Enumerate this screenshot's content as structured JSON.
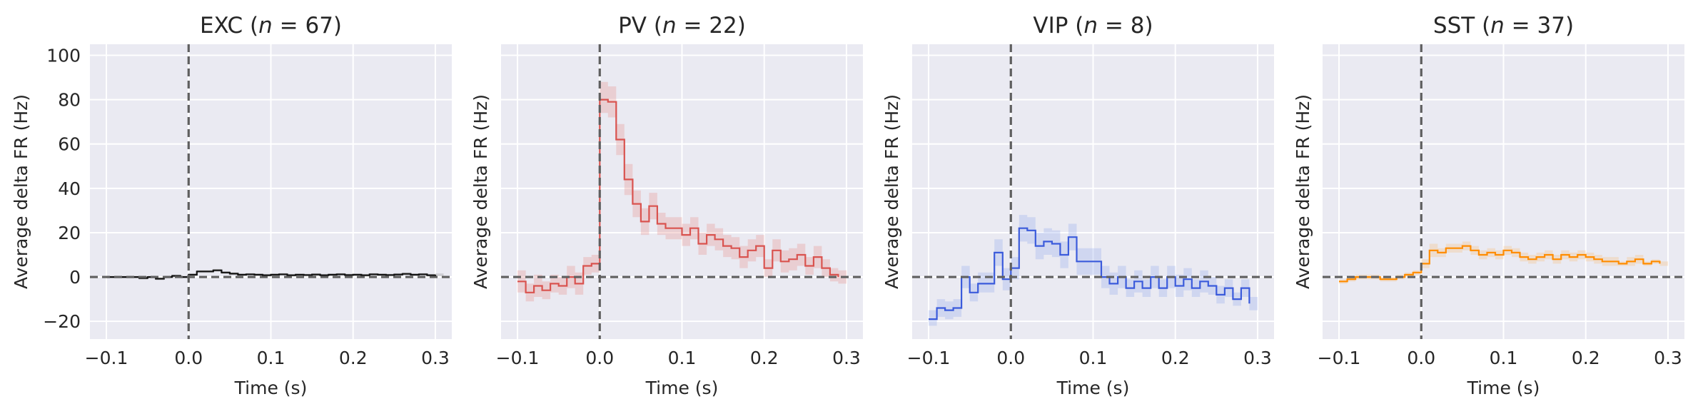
{
  "figure": {
    "background": "#ffffff",
    "axes_facecolor": "#eaeaf2",
    "grid_color": "#ffffff"
  },
  "chart_data": [
    {
      "type": "line",
      "style": "step",
      "title": "EXC (n = 67)",
      "title_prefix": "EXC (",
      "title_n": "67",
      "xlabel": "Time (s)",
      "ylabel": "Average delta FR (Hz)",
      "xlim": [
        -0.12,
        0.32
      ],
      "ylim": [
        -28,
        105
      ],
      "xticks": [
        -0.1,
        0.0,
        0.1,
        0.2,
        0.3
      ],
      "xtick_labels": [
        "−0.1",
        "0.0",
        "0.1",
        "0.2",
        "0.3"
      ],
      "yticks": [
        -20,
        0,
        20,
        40,
        60,
        80,
        100
      ],
      "ytick_labels": [
        "−20",
        "0",
        "20",
        "40",
        "60",
        "80",
        "100"
      ],
      "show_yticklabels": true,
      "grid": true,
      "color": "#111111",
      "band_color": "#999999",
      "reference_lines": {
        "x": 0,
        "y": 0,
        "color": "#5f5f5f",
        "style": "dashed"
      },
      "series": [
        {
          "x": [
            -0.1,
            -0.09,
            -0.08,
            -0.07,
            -0.06,
            -0.05,
            -0.04,
            -0.03,
            -0.02,
            -0.01,
            0.0,
            0.01,
            0.02,
            0.03,
            0.04,
            0.05,
            0.06,
            0.07,
            0.08,
            0.09,
            0.1,
            0.11,
            0.12,
            0.13,
            0.14,
            0.15,
            0.16,
            0.17,
            0.18,
            0.19,
            0.2,
            0.21,
            0.22,
            0.23,
            0.24,
            0.25,
            0.26,
            0.27,
            0.28,
            0.29,
            0.3
          ],
          "y": [
            0.0,
            0.0,
            0.0,
            0.0,
            -0.5,
            0.0,
            -0.8,
            0.0,
            0.5,
            0.0,
            1.0,
            2.5,
            2.5,
            3.0,
            2.0,
            1.5,
            1.0,
            1.2,
            1.0,
            0.8,
            1.0,
            1.2,
            0.8,
            1.0,
            0.9,
            1.1,
            0.8,
            1.0,
            1.2,
            0.9,
            1.0,
            0.8,
            1.2,
            1.0,
            0.9,
            1.1,
            1.4,
            1.0,
            1.2,
            0.8,
            1.0
          ],
          "ci_low": [
            -0.6,
            -0.6,
            -0.6,
            -0.6,
            -1.1,
            -0.6,
            -1.4,
            -0.6,
            -0.1,
            -0.6,
            0.4,
            1.9,
            1.9,
            2.4,
            1.4,
            0.9,
            0.4,
            0.6,
            0.4,
            0.2,
            0.4,
            0.6,
            0.2,
            0.4,
            0.3,
            0.5,
            0.2,
            0.4,
            0.6,
            0.3,
            0.4,
            0.2,
            0.6,
            0.4,
            0.3,
            0.5,
            0.8,
            0.4,
            0.6,
            0.2,
            0.4
          ],
          "ci_high": [
            0.6,
            0.6,
            0.6,
            0.6,
            0.1,
            0.6,
            -0.2,
            0.6,
            1.1,
            0.6,
            1.6,
            3.1,
            3.1,
            3.6,
            2.6,
            2.1,
            1.6,
            1.8,
            1.6,
            1.4,
            1.6,
            1.8,
            1.4,
            1.6,
            1.5,
            1.7,
            1.4,
            1.6,
            1.8,
            1.5,
            1.6,
            1.4,
            1.8,
            1.6,
            1.5,
            1.7,
            2.0,
            1.6,
            1.8,
            1.4,
            1.6
          ]
        }
      ]
    },
    {
      "type": "line",
      "style": "step",
      "title": "PV (n = 22)",
      "title_prefix": "PV (",
      "title_n": "22",
      "xlabel": "Time (s)",
      "ylabel": "Average delta FR (Hz)",
      "xlim": [
        -0.12,
        0.32
      ],
      "ylim": [
        -28,
        105
      ],
      "xticks": [
        -0.1,
        0.0,
        0.1,
        0.2,
        0.3
      ],
      "xtick_labels": [
        "−0.1",
        "0.0",
        "0.1",
        "0.2",
        "0.3"
      ],
      "yticks": [
        -20,
        0,
        20,
        40,
        60,
        80,
        100
      ],
      "ytick_labels": [
        "−20",
        "0",
        "20",
        "40",
        "60",
        "80",
        "100"
      ],
      "show_yticklabels": false,
      "grid": true,
      "color": "#d9534f",
      "band_color": "#e89a98",
      "reference_lines": {
        "x": 0,
        "y": 0,
        "color": "#5f5f5f",
        "style": "dashed"
      },
      "series": [
        {
          "x": [
            -0.1,
            -0.09,
            -0.08,
            -0.07,
            -0.06,
            -0.05,
            -0.04,
            -0.03,
            -0.02,
            -0.01,
            0.0,
            0.01,
            0.02,
            0.03,
            0.04,
            0.05,
            0.06,
            0.07,
            0.08,
            0.09,
            0.1,
            0.11,
            0.12,
            0.13,
            0.14,
            0.15,
            0.16,
            0.17,
            0.18,
            0.19,
            0.2,
            0.21,
            0.22,
            0.23,
            0.24,
            0.25,
            0.26,
            0.27,
            0.28,
            0.29
          ],
          "y": [
            -2,
            -7,
            -4,
            -6,
            -3,
            -4,
            0,
            -3,
            5,
            6,
            80,
            79,
            62,
            44,
            33,
            25,
            32,
            24,
            22,
            22,
            19,
            22,
            15,
            19,
            17,
            14,
            13,
            9,
            12,
            14,
            4,
            12,
            7,
            8,
            10,
            5,
            9,
            4,
            1,
            0
          ],
          "ci_low": [
            -7,
            -11,
            -9,
            -10,
            -7,
            -8,
            -5,
            -8,
            1,
            2,
            74,
            72,
            55,
            37,
            27,
            19,
            26,
            19,
            17,
            17,
            14,
            17,
            10,
            14,
            12,
            9,
            8,
            4,
            7,
            9,
            0,
            7,
            2,
            3,
            5,
            1,
            4,
            0,
            -2,
            -3
          ],
          "ci_high": [
            3,
            -3,
            1,
            -2,
            1,
            0,
            5,
            2,
            9,
            10,
            88,
            86,
            69,
            51,
            39,
            31,
            38,
            29,
            27,
            27,
            24,
            27,
            20,
            24,
            22,
            19,
            18,
            14,
            17,
            19,
            8,
            17,
            12,
            13,
            15,
            9,
            14,
            8,
            4,
            3
          ]
        }
      ]
    },
    {
      "type": "line",
      "style": "step",
      "title": "VIP (n = 8)",
      "title_prefix": "VIP (",
      "title_n": "8",
      "xlabel": "Time (s)",
      "ylabel": "Average delta FR (Hz)",
      "xlim": [
        -0.12,
        0.32
      ],
      "ylim": [
        -28,
        105
      ],
      "xticks": [
        -0.1,
        0.0,
        0.1,
        0.2,
        0.3
      ],
      "xtick_labels": [
        "−0.1",
        "0.0",
        "0.1",
        "0.2",
        "0.3"
      ],
      "yticks": [
        -20,
        0,
        20,
        40,
        60,
        80,
        100
      ],
      "ytick_labels": [
        "−20",
        "0",
        "20",
        "40",
        "60",
        "80",
        "100"
      ],
      "show_yticklabels": false,
      "grid": true,
      "color": "#3b5bdb",
      "band_color": "#9fb2ee",
      "reference_lines": {
        "x": 0,
        "y": 0,
        "color": "#5f5f5f",
        "style": "dashed"
      },
      "series": [
        {
          "x": [
            -0.1,
            -0.09,
            -0.08,
            -0.07,
            -0.06,
            -0.05,
            -0.04,
            -0.03,
            -0.02,
            -0.01,
            0.0,
            0.01,
            0.02,
            0.03,
            0.04,
            0.05,
            0.06,
            0.07,
            0.08,
            0.09,
            0.1,
            0.11,
            0.12,
            0.13,
            0.14,
            0.15,
            0.16,
            0.17,
            0.18,
            0.19,
            0.2,
            0.21,
            0.22,
            0.23,
            0.24,
            0.25,
            0.26,
            0.27,
            0.28,
            0.29
          ],
          "y": [
            -19,
            -14,
            -15,
            -14,
            0,
            -7,
            -3,
            -3,
            11,
            -1,
            4,
            22,
            21,
            14,
            16,
            15,
            10,
            18,
            7,
            7,
            7,
            0,
            -3,
            0,
            -5,
            -2,
            -5,
            0,
            -5,
            0,
            -4,
            -1,
            -5,
            -2,
            -4,
            -8,
            -5,
            -10,
            -5,
            -12
          ],
          "ci_low": [
            -22,
            -18,
            -19,
            -18,
            -5,
            -11,
            -7,
            -7,
            5,
            -6,
            -1,
            16,
            15,
            8,
            10,
            9,
            4,
            12,
            1,
            1,
            1,
            -5,
            -8,
            -5,
            -9,
            -7,
            -9,
            -5,
            -9,
            -5,
            -9,
            -6,
            -9,
            -7,
            -8,
            -12,
            -9,
            -13,
            -9,
            -15
          ],
          "ci_high": [
            -15,
            -10,
            -11,
            -10,
            5,
            -3,
            2,
            2,
            17,
            4,
            9,
            28,
            27,
            20,
            22,
            21,
            16,
            24,
            13,
            13,
            13,
            5,
            2,
            5,
            -1,
            3,
            -1,
            5,
            -1,
            5,
            1,
            4,
            -1,
            3,
            0,
            -4,
            -1,
            -7,
            -1,
            -9
          ]
        }
      ]
    },
    {
      "type": "line",
      "style": "step",
      "title": "SST (n = 37)",
      "title_prefix": "SST (",
      "title_n": "37",
      "xlabel": "Time (s)",
      "ylabel": "Average delta FR (Hz)",
      "xlim": [
        -0.12,
        0.32
      ],
      "ylim": [
        -28,
        105
      ],
      "xticks": [
        -0.1,
        0.0,
        0.1,
        0.2,
        0.3
      ],
      "xtick_labels": [
        "−0.1",
        "0.0",
        "0.1",
        "0.2",
        "0.3"
      ],
      "yticks": [
        -20,
        0,
        20,
        40,
        60,
        80,
        100
      ],
      "ytick_labels": [
        "−20",
        "0",
        "20",
        "40",
        "60",
        "80",
        "100"
      ],
      "show_yticklabels": false,
      "grid": true,
      "color": "#ff8c00",
      "band_color": "#f5c48a",
      "reference_lines": {
        "x": 0,
        "y": 0,
        "color": "#5f5f5f",
        "style": "dashed"
      },
      "series": [
        {
          "x": [
            -0.1,
            -0.09,
            -0.08,
            -0.07,
            -0.06,
            -0.05,
            -0.04,
            -0.03,
            -0.02,
            -0.01,
            0.0,
            0.01,
            0.02,
            0.03,
            0.04,
            0.05,
            0.06,
            0.07,
            0.08,
            0.09,
            0.1,
            0.11,
            0.12,
            0.13,
            0.14,
            0.15,
            0.16,
            0.17,
            0.18,
            0.19,
            0.2,
            0.21,
            0.22,
            0.23,
            0.24,
            0.25,
            0.26,
            0.27,
            0.28,
            0.29
          ],
          "y": [
            -2,
            -1,
            0,
            0,
            0,
            -1,
            -1,
            0,
            1,
            2,
            6,
            12,
            11,
            13,
            13,
            14,
            12,
            10,
            11,
            10,
            12,
            11,
            9,
            8,
            9,
            10,
            8,
            10,
            9,
            10,
            9,
            8,
            7,
            7,
            6,
            7,
            8,
            6,
            7,
            6
          ],
          "ci_low": [
            -3,
            -2,
            -1,
            -1,
            -1,
            -2,
            -2,
            -1,
            0,
            1,
            4,
            9,
            9,
            11,
            11,
            12,
            10,
            8,
            9,
            8,
            10,
            9,
            7,
            6,
            7,
            8,
            6,
            8,
            7,
            8,
            7,
            6,
            5,
            5,
            5,
            5,
            6,
            5,
            6,
            5
          ],
          "ci_high": [
            -1,
            0,
            1,
            1,
            1,
            0,
            0,
            1,
            2,
            3,
            8,
            15,
            13,
            15,
            15,
            16,
            14,
            12,
            13,
            12,
            14,
            13,
            11,
            10,
            11,
            12,
            10,
            12,
            11,
            12,
            11,
            10,
            9,
            9,
            7,
            9,
            10,
            7,
            8,
            7
          ]
        }
      ]
    }
  ]
}
